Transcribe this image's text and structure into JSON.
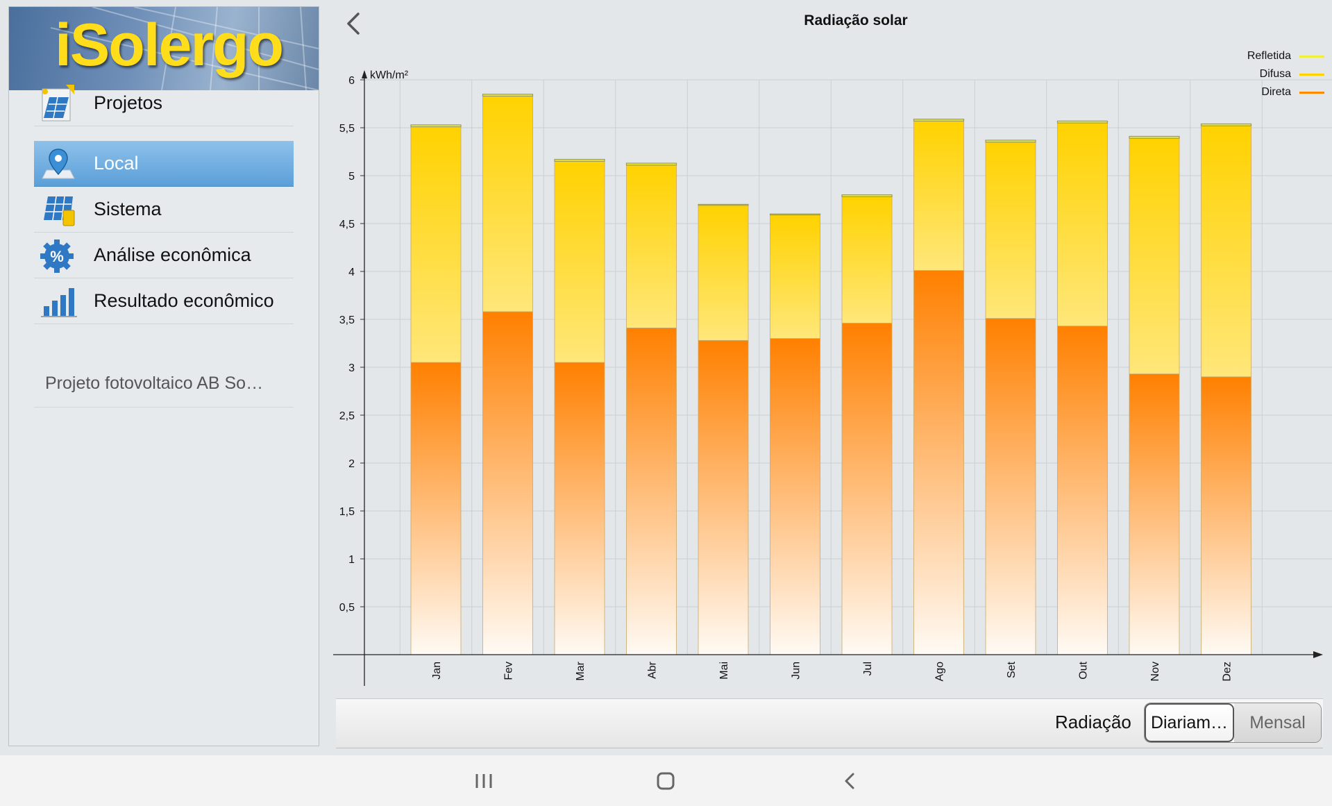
{
  "app": {
    "name": "iSolergo"
  },
  "sidebar": {
    "items": [
      {
        "label": "Projetos",
        "icon": "projects-icon",
        "active": false
      },
      {
        "label": "Local",
        "icon": "location-pin-icon",
        "active": true
      },
      {
        "label": "Sistema",
        "icon": "solar-system-icon",
        "active": false
      },
      {
        "label": "Análise econômica",
        "icon": "percent-gear-icon",
        "active": false
      },
      {
        "label": "Resultado econômico",
        "icon": "bar-chart-icon",
        "active": false
      }
    ],
    "project_name": "Projeto fotovoltaico AB So…"
  },
  "header": {
    "back_icon": "chevron-left-icon"
  },
  "chart_data": {
    "type": "bar",
    "stacked": true,
    "title": "Radiação solar",
    "ylabel": "kWh/m²",
    "xlabel": "",
    "ylim": [
      0,
      6
    ],
    "yticks": [
      "0,5",
      "1",
      "1,5",
      "2",
      "2,5",
      "3",
      "3,5",
      "4",
      "4,5",
      "5",
      "5,5",
      "6"
    ],
    "categories": [
      "Jan",
      "Fev",
      "Mar",
      "Abr",
      "Mai",
      "Jun",
      "Jul",
      "Ago",
      "Set",
      "Out",
      "Nov",
      "Dez"
    ],
    "series": [
      {
        "name": "Direta",
        "color": "#ff8a00",
        "values": [
          3.05,
          3.58,
          3.05,
          3.41,
          3.28,
          3.3,
          3.46,
          4.01,
          3.51,
          3.43,
          2.93,
          2.9
        ]
      },
      {
        "name": "Difusa",
        "color": "#ffd200",
        "values": [
          2.46,
          2.25,
          2.1,
          1.7,
          1.41,
          1.29,
          1.32,
          1.56,
          1.84,
          2.12,
          2.46,
          2.62
        ]
      },
      {
        "name": "Refletida",
        "color": "#f0f03c",
        "values": [
          0.02,
          0.02,
          0.02,
          0.02,
          0.01,
          0.01,
          0.02,
          0.02,
          0.02,
          0.02,
          0.02,
          0.02
        ]
      }
    ],
    "legend": [
      {
        "name": "Refletida",
        "color": "#f0f03c"
      },
      {
        "name": "Difusa",
        "color": "#ffd200"
      },
      {
        "name": "Direta",
        "color": "#ff8a00"
      }
    ],
    "legend_position": "top-right",
    "grid": true
  },
  "toolbar": {
    "label": "Radiação",
    "options": [
      {
        "label": "Diariam…",
        "selected": true
      },
      {
        "label": "Mensal",
        "selected": false
      }
    ]
  },
  "system_nav": {
    "recent_icon": "recent-apps-icon",
    "home_icon": "home-icon",
    "back_icon": "system-back-icon"
  }
}
